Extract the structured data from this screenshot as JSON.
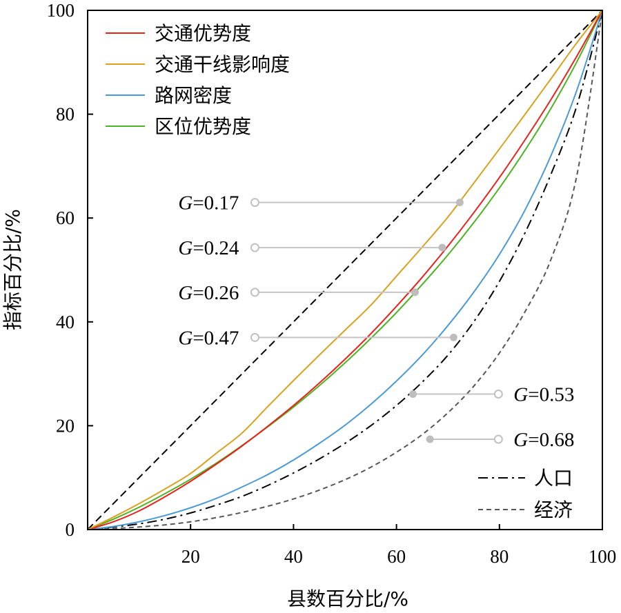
{
  "chart_data": {
    "type": "line",
    "xlabel": "县数百分比/%",
    "ylabel": "指标百分比/%",
    "xlim": [
      0,
      100
    ],
    "ylim": [
      0,
      100
    ],
    "xticks": [
      20,
      40,
      60,
      80,
      100
    ],
    "yticks": [
      0,
      20,
      40,
      60,
      80,
      100
    ],
    "grid": false,
    "legend_upper": {
      "placement": "top-left",
      "entries": [
        "交通优势度",
        "交通干线影响度",
        "路网密度",
        "区位优势度"
      ]
    },
    "legend_lower": {
      "placement": "bottom-right",
      "entries": [
        "人口",
        "经济"
      ]
    },
    "series": [
      {
        "name": "交通优势度",
        "color": "#e8211d",
        "dash": "solid",
        "x": [
          0,
          5,
          10,
          15,
          20,
          25,
          30,
          35,
          40,
          45,
          50,
          55,
          60,
          65,
          70,
          75,
          80,
          85,
          90,
          95,
          100
        ],
        "y": [
          0,
          1.5,
          3.6,
          6.3,
          9.3,
          12.6,
          16.1,
          19.9,
          23.9,
          28.2,
          32.8,
          37.7,
          43.0,
          48.6,
          54.6,
          61.0,
          67.8,
          75.1,
          82.8,
          91.1,
          100
        ]
      },
      {
        "name": "交通干线影响度",
        "color": "#d9a21e",
        "dash": "solid",
        "x": [
          0,
          5,
          10,
          15,
          20,
          25,
          30,
          35,
          40,
          45,
          50,
          55,
          60,
          65,
          70,
          75,
          80,
          85,
          90,
          95,
          100
        ],
        "y": [
          0,
          2.4,
          5.0,
          7.8,
          10.8,
          14.7,
          18.6,
          23.7,
          28.7,
          33.6,
          38.4,
          43.2,
          48.8,
          54.4,
          60.2,
          66.7,
          73.3,
          80.0,
          86.8,
          93.7,
          100
        ]
      },
      {
        "name": "路网密度",
        "color": "#4a9ad6",
        "dash": "solid",
        "x": [
          0,
          5,
          10,
          15,
          20,
          25,
          30,
          35,
          40,
          45,
          50,
          55,
          60,
          65,
          70,
          75,
          80,
          85,
          90,
          95,
          100
        ],
        "y": [
          0,
          0.6,
          1.5,
          2.7,
          4.2,
          6.0,
          8.2,
          10.6,
          13.4,
          16.6,
          20.1,
          24.1,
          28.6,
          33.6,
          39.3,
          45.7,
          53.0,
          61.6,
          72.0,
          84.5,
          100
        ]
      },
      {
        "name": "区位优势度",
        "color": "#4db320",
        "dash": "solid",
        "x": [
          0,
          5,
          10,
          15,
          20,
          25,
          30,
          35,
          40,
          45,
          50,
          55,
          60,
          65,
          70,
          75,
          80,
          85,
          90,
          95,
          100
        ],
        "y": [
          0,
          2.0,
          4.3,
          6.9,
          9.7,
          12.8,
          16.2,
          19.8,
          23.6,
          27.7,
          32.1,
          36.8,
          41.8,
          47.2,
          52.9,
          59.1,
          65.8,
          73.1,
          81.1,
          90.0,
          100
        ]
      },
      {
        "name": "人口",
        "color": "#000000",
        "dash": "dashdot",
        "x": [
          0,
          5,
          10,
          15,
          20,
          25,
          30,
          35,
          40,
          45,
          50,
          55,
          60,
          65,
          70,
          75,
          80,
          85,
          90,
          95,
          100
        ],
        "y": [
          0,
          0.5,
          1.1,
          2.0,
          3.2,
          4.7,
          6.4,
          8.5,
          10.9,
          13.6,
          16.6,
          20.0,
          23.9,
          28.4,
          33.6,
          40.0,
          47.8,
          57.2,
          68.4,
          81.5,
          100
        ]
      },
      {
        "name": "经济",
        "color": "#555555",
        "dash": "dashed",
        "x": [
          0,
          5,
          10,
          15,
          20,
          25,
          30,
          35,
          40,
          45,
          50,
          55,
          60,
          65,
          70,
          75,
          80,
          85,
          90,
          95,
          100
        ],
        "y": [
          0,
          0.2,
          0.5,
          0.9,
          1.5,
          2.3,
          3.3,
          4.5,
          5.9,
          7.6,
          9.6,
          12.0,
          14.9,
          18.3,
          22.5,
          27.6,
          34.0,
          42.0,
          52.0,
          68.0,
          100
        ]
      },
      {
        "name": "",
        "color": "#000000",
        "dash": "longdash",
        "x": [
          0,
          100
        ],
        "y": [
          0,
          100
        ]
      }
    ],
    "annotations": [
      {
        "prefix": "G",
        "text": "=0.17",
        "side": "left",
        "label_x": 32.5,
        "y": 63.0,
        "point_x": 72.3
      },
      {
        "prefix": "G",
        "text": "=0.24",
        "side": "left",
        "label_x": 32.5,
        "y": 54.3,
        "point_x": 68.9
      },
      {
        "prefix": "G",
        "text": "=0.26",
        "side": "left",
        "label_x": 32.5,
        "y": 45.7,
        "point_x": 63.6
      },
      {
        "prefix": "G",
        "text": "=0.47",
        "side": "left",
        "label_x": 32.5,
        "y": 37.0,
        "point_x": 71.1
      },
      {
        "prefix": "G",
        "text": "=0.53",
        "side": "right",
        "label_x": 79.8,
        "y": 26.1,
        "point_x": 63.2
      },
      {
        "prefix": "G",
        "text": "=0.68",
        "side": "right",
        "label_x": 79.8,
        "y": 17.4,
        "point_x": 66.5
      }
    ]
  }
}
